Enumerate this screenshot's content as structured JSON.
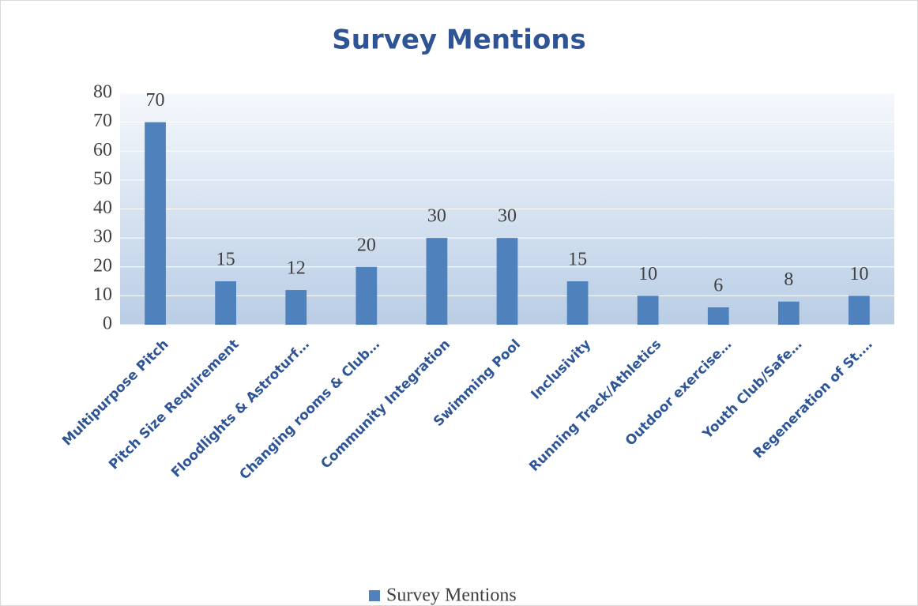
{
  "chart_data": {
    "type": "bar",
    "title": "Survey Mentions",
    "categories": [
      "Multipurpose Pitch",
      "Pitch Size Requirement",
      "Floodlights & Astroturf…",
      "Changing rooms & Club…",
      "Community Integration",
      "Swimming Pool",
      "Inclusivity",
      "Running Track/Athletics",
      "Outdoor exercise…",
      "Youth Club/Safe…",
      "Regeneration of St.…"
    ],
    "series": [
      {
        "name": "Survey Mentions",
        "color": "#4f81bd",
        "values": [
          70,
          15,
          12,
          20,
          30,
          30,
          15,
          10,
          6,
          8,
          10
        ]
      }
    ],
    "ylim": [
      0,
      80
    ],
    "yticks": [
      0,
      10,
      20,
      30,
      40,
      50,
      60,
      70,
      80
    ],
    "grid": true,
    "legend": "bottom"
  }
}
